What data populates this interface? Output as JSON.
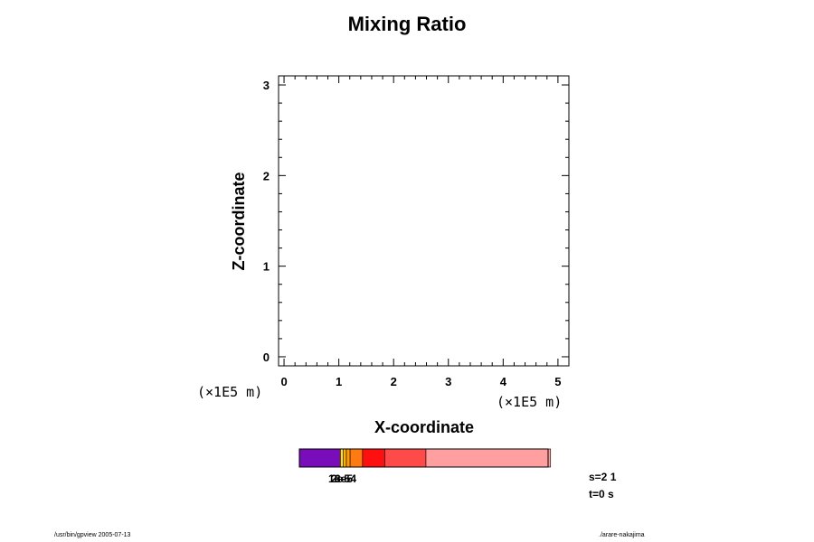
{
  "chart_data": {
    "type": "heatmap",
    "title": "Mixing Ratio",
    "xlabel": "X-coordinate",
    "ylabel": "Z-coordinate",
    "x_unit": "(×1E5 m)",
    "z_unit": "(×1E5 m)",
    "xlim": [
      -0.1,
      5.2
    ],
    "ylim": [
      -0.1,
      3.1
    ],
    "x_ticks": [
      "0",
      "1",
      "2",
      "3",
      "4",
      "5"
    ],
    "y_ticks": [
      "0",
      "1",
      "2",
      "3"
    ],
    "grid": false,
    "series": [],
    "colorbar": {
      "segments": [
        {
          "fraction": 0.165,
          "color": "#7a0dba"
        },
        {
          "fraction": 0.012,
          "color": "#ffe600"
        },
        {
          "fraction": 0.012,
          "color": "#ffb000"
        },
        {
          "fraction": 0.015,
          "color": "#ff9a00"
        },
        {
          "fraction": 0.05,
          "color": "#ff7a10"
        },
        {
          "fraction": 0.09,
          "color": "#ff1010"
        },
        {
          "fraction": 0.165,
          "color": "#ff4a4a"
        },
        {
          "fraction": 0.501,
          "color": "#ff9f9f"
        }
      ],
      "labels": [
        "1e-5",
        "2e-5",
        "3e-4"
      ]
    }
  },
  "annotations": {
    "s_label": "s=2 1",
    "t_label": "t=0 s"
  },
  "footer": {
    "left": "/usr/bin/gpview 2005-07-13",
    "right": "./arare-nakajima"
  }
}
